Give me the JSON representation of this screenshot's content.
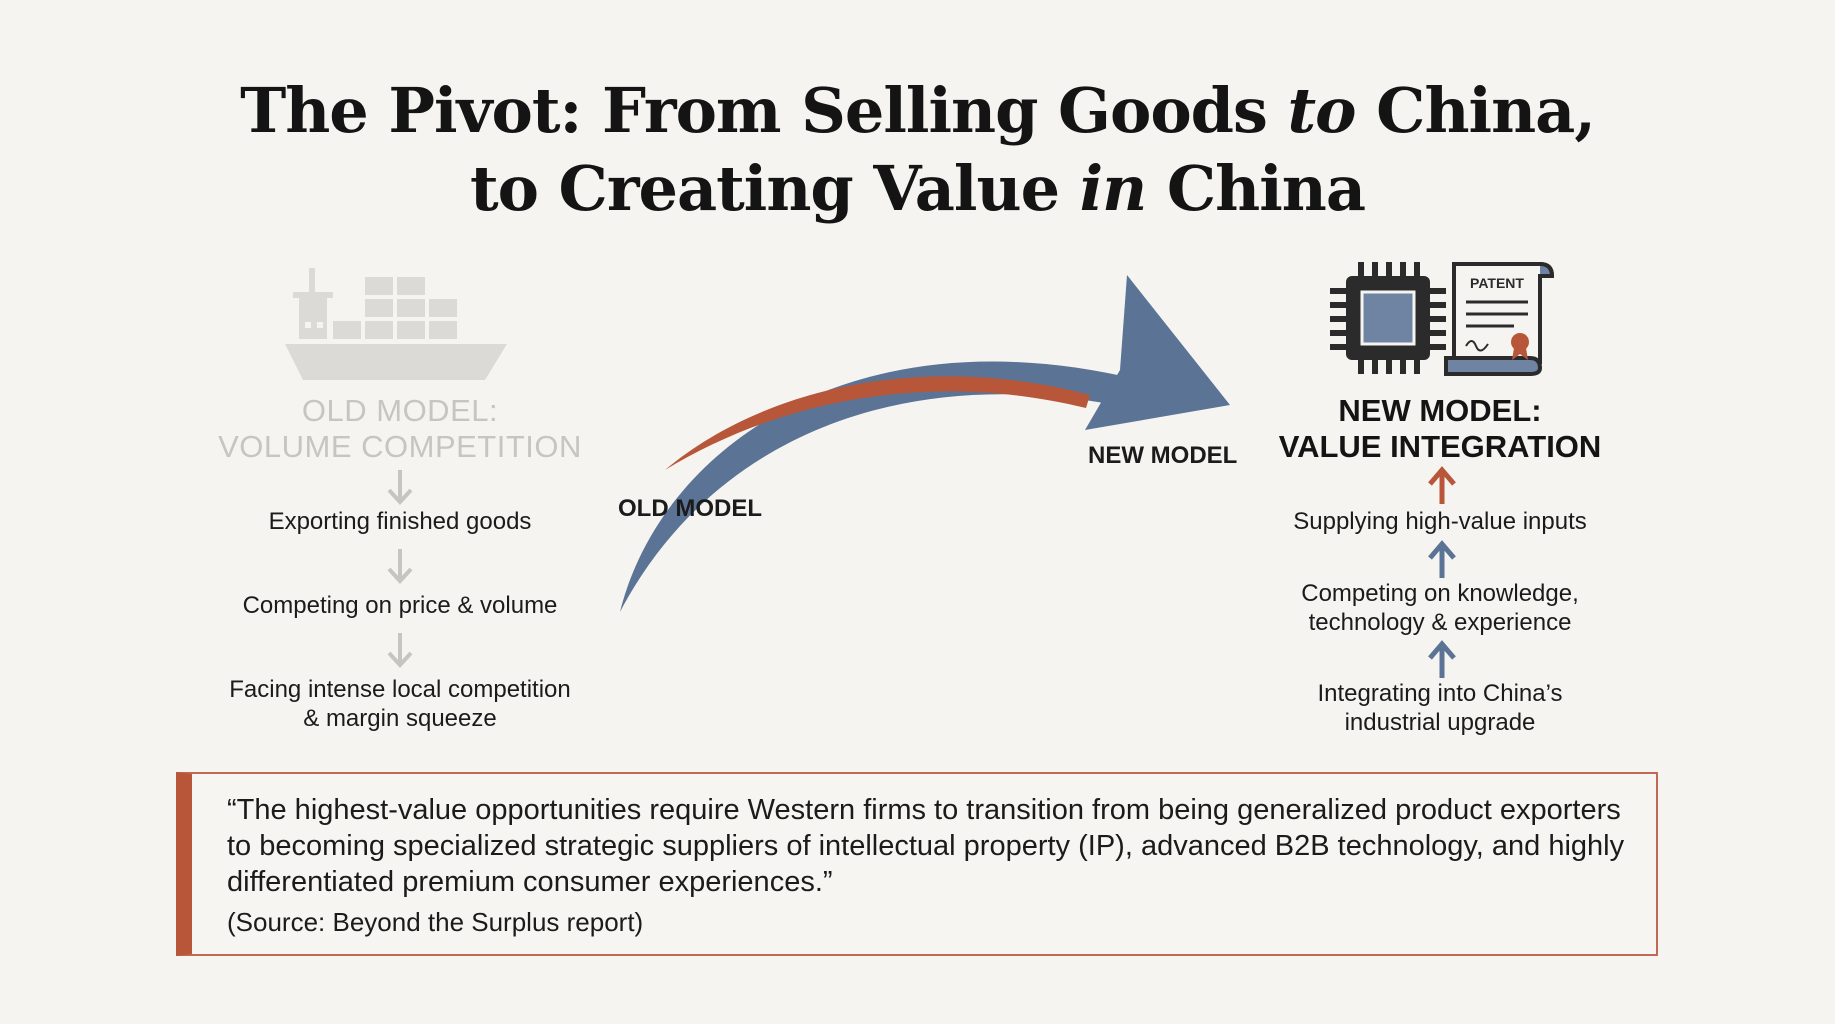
{
  "title": {
    "line1_part1": "The Pivot: From Selling Goods ",
    "line1_emph": "to",
    "line1_part2": " China,",
    "line2_part1": "to Creating Value ",
    "line2_emph": "in",
    "line2_part2": " China"
  },
  "old_model": {
    "icon": "cargo-ship-icon",
    "heading_line1": "OLD MODEL:",
    "heading_line2": "VOLUME COMPETITION",
    "steps": [
      "Exporting finished goods",
      "Competing on price & volume",
      "Facing intense local competition",
      "& margin squeeze"
    ]
  },
  "pivot_arrow": {
    "start_label": "OLD MODEL",
    "end_label": "NEW MODEL"
  },
  "new_model": {
    "icons": [
      "microchip-icon",
      "patent-document-icon"
    ],
    "patent_label": "PATENT",
    "heading_line1": "NEW MODEL:",
    "heading_line2": "VALUE INTEGRATION",
    "steps": [
      "Supplying high-value inputs",
      "Competing on knowledge,",
      "technology & experience",
      "Integrating into China’s",
      "industrial upgrade"
    ]
  },
  "quote": {
    "text": "“The highest-value opportunities require Western firms to transition from being generalized product exporters to becoming specialized strategic suppliers of intellectual property (IP), advanced B2B technology, and highly differentiated premium consumer experiences.”",
    "source": "(Source: Beyond the Surplus report)"
  },
  "colors": {
    "background": "#f6f4f0",
    "arrow_blue": "#5b7394",
    "accent_rust": "#b8563a",
    "faded_gray": "#c7c5c1"
  }
}
